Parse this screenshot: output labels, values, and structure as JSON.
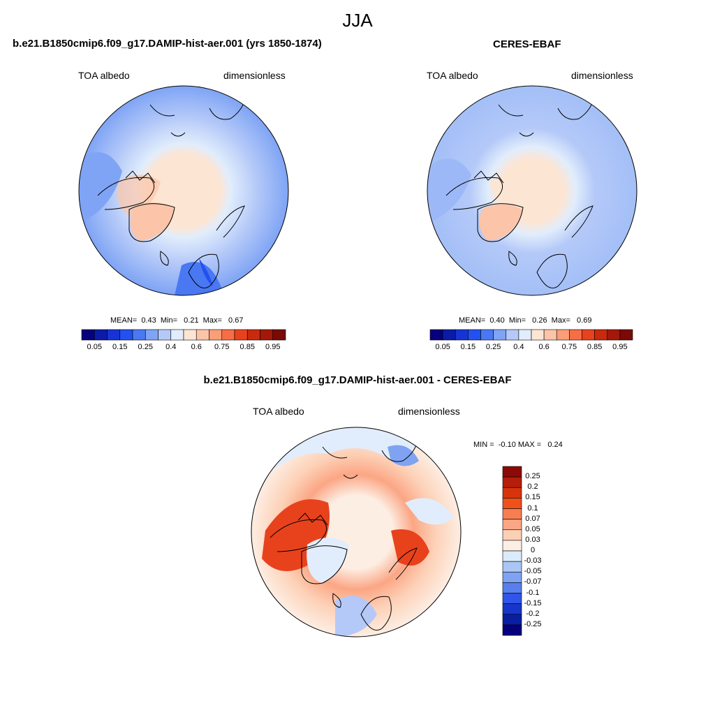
{
  "title": "JJA",
  "panels": [
    {
      "case": "b.e21.B1850cmip6.f09_g17.DAMIP-hist-aer.001 (yrs 1850-1874)",
      "variable": "TOA albedo",
      "units": "dimensionless",
      "stats": "MEAN=  0.43  Min=   0.21  Max=   0.67"
    },
    {
      "case": "CERES-EBAF",
      "variable": "TOA albedo",
      "units": "dimensionless",
      "stats": "MEAN=  0.40  Min=   0.26  Max=   0.69"
    },
    {
      "case": "b.e21.B1850cmip6.f09_g17.DAMIP-hist-aer.001 - CERES-EBAF",
      "variable": "TOA albedo",
      "units": "dimensionless",
      "stats": "MIN =  -0.10 MAX =   0.24"
    }
  ],
  "colorbar_main": {
    "labels": [
      "0.05",
      "0.15",
      "0.25",
      "0.4",
      "0.6",
      "0.75",
      "0.85",
      "0.95"
    ],
    "colors": [
      "#07007d",
      "#0b1ba8",
      "#1634d4",
      "#2350f0",
      "#4a78f2",
      "#7fa4f5",
      "#b4c9f8",
      "#e1edfc",
      "#fde5d4",
      "#fcc4a8",
      "#fa9e78",
      "#f66e45",
      "#e8421d",
      "#c92a0c",
      "#a3180a",
      "#7a0a05"
    ]
  },
  "colorbar_diff": {
    "labels": [
      "0.25",
      "0.2",
      "0.15",
      "0.1",
      "0.07",
      "0.05",
      "0.03",
      "0",
      "-0.03",
      "-0.05",
      "-0.07",
      "-0.1",
      "-0.15",
      "-0.2",
      "-0.25"
    ],
    "colors": [
      "#8b0a05",
      "#b51e08",
      "#d8340c",
      "#f0501a",
      "#f87e52",
      "#fba684",
      "#fdd0b6",
      "#fdeee3",
      "#dcebfc",
      "#aac6f5",
      "#7fa3f2",
      "#5780ee",
      "#2f56e8",
      "#1736c9",
      "#0a1ea3",
      "#07007d"
    ]
  },
  "map_colors": {
    "ocean_mid": "#b4c9f8",
    "ocean_low": "#7fa4f5",
    "ice_high": "#fde5d4",
    "ice_higher": "#fcc4a8",
    "diff_pos": "#fdd0b6",
    "diff_strong": "#f66e45"
  }
}
